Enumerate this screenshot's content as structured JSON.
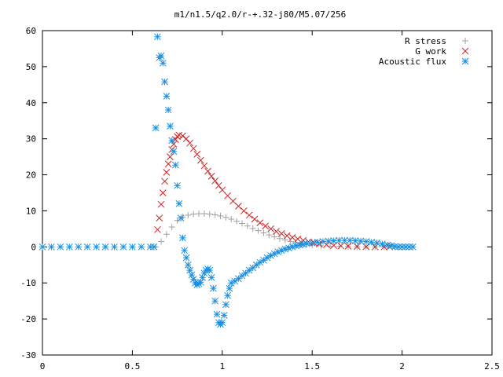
{
  "chart_data": {
    "type": "scatter",
    "title": "m1/n1.5/q2.0/r-+.32-j80/M5.07/256",
    "xlabel": "",
    "ylabel": "",
    "xlim": [
      0,
      2.5
    ],
    "ylim": [
      -30,
      60
    ],
    "xticks": [
      0,
      0.5,
      1,
      1.5,
      2,
      2.5
    ],
    "yticks": [
      -30,
      -20,
      -10,
      0,
      10,
      20,
      30,
      40,
      50,
      60
    ],
    "xtick_labels": [
      "0",
      "0.5",
      "1",
      "1.5",
      "2",
      "2.5"
    ],
    "ytick_labels": [
      "-30",
      "-20",
      "-10",
      "0",
      "10",
      "20",
      "30",
      "40",
      "50",
      "60"
    ],
    "grid": false,
    "legend_position": "top-right",
    "series": [
      {
        "name": "R stress",
        "marker": "plus",
        "color": "#a0a0a0",
        "points": [
          [
            0.63,
            0
          ],
          [
            0.66,
            1.5
          ],
          [
            0.69,
            3.5
          ],
          [
            0.72,
            5.5
          ],
          [
            0.75,
            7.3
          ],
          [
            0.78,
            8.3
          ],
          [
            0.81,
            8.8
          ],
          [
            0.84,
            9.1
          ],
          [
            0.87,
            9.2
          ],
          [
            0.9,
            9.2
          ],
          [
            0.93,
            9.1
          ],
          [
            0.96,
            8.9
          ],
          [
            0.99,
            8.6
          ],
          [
            1.02,
            8.2
          ],
          [
            1.05,
            7.7
          ],
          [
            1.08,
            7.1
          ],
          [
            1.11,
            6.5
          ],
          [
            1.14,
            5.8
          ],
          [
            1.17,
            5.1
          ],
          [
            1.2,
            4.5
          ],
          [
            1.23,
            3.9
          ],
          [
            1.26,
            3.3
          ],
          [
            1.29,
            2.8
          ],
          [
            1.32,
            2.3
          ],
          [
            1.35,
            1.9
          ],
          [
            1.38,
            1.5
          ],
          [
            1.41,
            1.2
          ],
          [
            1.44,
            0.9
          ],
          [
            1.47,
            0.7
          ],
          [
            1.5,
            0.5
          ],
          [
            1.55,
            0.3
          ],
          [
            1.6,
            0.2
          ],
          [
            1.65,
            0.15
          ],
          [
            1.7,
            0.1
          ],
          [
            1.75,
            0.05
          ],
          [
            1.8,
            0.02
          ],
          [
            1.85,
            0.01
          ],
          [
            1.9,
            0
          ]
        ]
      },
      {
        "name": "G work",
        "marker": "cross",
        "color": "#d02020",
        "points": [
          [
            0.64,
            4.8
          ],
          [
            0.65,
            8.0
          ],
          [
            0.66,
            11.8
          ],
          [
            0.67,
            15.0
          ],
          [
            0.68,
            18.2
          ],
          [
            0.69,
            20.7
          ],
          [
            0.7,
            23.0
          ],
          [
            0.71,
            25.0
          ],
          [
            0.72,
            27.0
          ],
          [
            0.73,
            28.5
          ],
          [
            0.74,
            29.8
          ],
          [
            0.75,
            30.6
          ],
          [
            0.76,
            31.0
          ],
          [
            0.78,
            30.8
          ],
          [
            0.8,
            30.0
          ],
          [
            0.82,
            28.8
          ],
          [
            0.84,
            27.3
          ],
          [
            0.86,
            25.7
          ],
          [
            0.88,
            24.0
          ],
          [
            0.9,
            22.5
          ],
          [
            0.92,
            21.0
          ],
          [
            0.94,
            19.6
          ],
          [
            0.96,
            18.3
          ],
          [
            0.98,
            17.0
          ],
          [
            1.0,
            15.8
          ],
          [
            1.03,
            14.2
          ],
          [
            1.06,
            12.7
          ],
          [
            1.09,
            11.3
          ],
          [
            1.12,
            10.0
          ],
          [
            1.15,
            8.8
          ],
          [
            1.18,
            7.7
          ],
          [
            1.21,
            6.7
          ],
          [
            1.24,
            5.8
          ],
          [
            1.27,
            5.0
          ],
          [
            1.3,
            4.3
          ],
          [
            1.33,
            3.7
          ],
          [
            1.36,
            3.1
          ],
          [
            1.39,
            2.6
          ],
          [
            1.42,
            2.2
          ],
          [
            1.45,
            1.8
          ],
          [
            1.48,
            1.4
          ],
          [
            1.51,
            1.1
          ],
          [
            1.54,
            0.8
          ],
          [
            1.58,
            0.6
          ],
          [
            1.62,
            0.4
          ],
          [
            1.66,
            0.3
          ],
          [
            1.7,
            0.2
          ],
          [
            1.75,
            0.1
          ],
          [
            1.8,
            0.05
          ],
          [
            1.85,
            0
          ],
          [
            1.9,
            0
          ],
          [
            1.93,
            0
          ]
        ]
      },
      {
        "name": "Acoustic flux",
        "marker": "star",
        "color": "#1a8fe0",
        "points": [
          [
            0.0,
            0
          ],
          [
            0.05,
            0
          ],
          [
            0.1,
            0
          ],
          [
            0.15,
            0
          ],
          [
            0.2,
            0
          ],
          [
            0.25,
            0
          ],
          [
            0.3,
            0
          ],
          [
            0.35,
            0
          ],
          [
            0.4,
            0
          ],
          [
            0.45,
            0
          ],
          [
            0.5,
            0
          ],
          [
            0.55,
            0
          ],
          [
            0.6,
            0
          ],
          [
            0.62,
            0
          ],
          [
            0.63,
            33.0
          ],
          [
            0.64,
            58.3
          ],
          [
            0.65,
            52.5
          ],
          [
            0.66,
            53.0
          ],
          [
            0.67,
            51.0
          ],
          [
            0.68,
            45.8
          ],
          [
            0.69,
            41.8
          ],
          [
            0.7,
            38.0
          ],
          [
            0.71,
            33.5
          ],
          [
            0.72,
            29.5
          ],
          [
            0.73,
            26.5
          ],
          [
            0.74,
            22.7
          ],
          [
            0.75,
            17.0
          ],
          [
            0.76,
            12.0
          ],
          [
            0.77,
            8.0
          ],
          [
            0.78,
            2.5
          ],
          [
            0.79,
            -1.0
          ],
          [
            0.8,
            -3.0
          ],
          [
            0.81,
            -5.0
          ],
          [
            0.82,
            -6.5
          ],
          [
            0.83,
            -7.8
          ],
          [
            0.84,
            -9.0
          ],
          [
            0.85,
            -10.0
          ],
          [
            0.86,
            -10.5
          ],
          [
            0.87,
            -10.2
          ],
          [
            0.88,
            -9.8
          ],
          [
            0.89,
            -8.5
          ],
          [
            0.9,
            -7.3
          ],
          [
            0.91,
            -6.5
          ],
          [
            0.92,
            -6.1
          ],
          [
            0.93,
            -6.5
          ],
          [
            0.94,
            -8.5
          ],
          [
            0.95,
            -11.5
          ],
          [
            0.96,
            -15.0
          ],
          [
            0.97,
            -18.7
          ],
          [
            0.98,
            -21.0
          ],
          [
            0.99,
            -21.5
          ],
          [
            1.0,
            -21.0
          ],
          [
            1.01,
            -19.0
          ],
          [
            1.02,
            -16.0
          ],
          [
            1.03,
            -13.5
          ],
          [
            1.04,
            -11.5
          ],
          [
            1.05,
            -10.0
          ],
          [
            1.07,
            -9.5
          ],
          [
            1.09,
            -8.8
          ],
          [
            1.11,
            -8.0
          ],
          [
            1.13,
            -7.3
          ],
          [
            1.15,
            -6.5
          ],
          [
            1.17,
            -5.8
          ],
          [
            1.19,
            -5.0
          ],
          [
            1.21,
            -4.3
          ],
          [
            1.23,
            -3.7
          ],
          [
            1.25,
            -3.0
          ],
          [
            1.27,
            -2.4
          ],
          [
            1.29,
            -1.9
          ],
          [
            1.31,
            -1.4
          ],
          [
            1.33,
            -1.0
          ],
          [
            1.35,
            -0.6
          ],
          [
            1.37,
            -0.3
          ],
          [
            1.39,
            0
          ],
          [
            1.41,
            0.3
          ],
          [
            1.43,
            0.5
          ],
          [
            1.45,
            0.7
          ],
          [
            1.47,
            0.9
          ],
          [
            1.5,
            1.1
          ],
          [
            1.53,
            1.3
          ],
          [
            1.56,
            1.5
          ],
          [
            1.59,
            1.6
          ],
          [
            1.62,
            1.7
          ],
          [
            1.65,
            1.8
          ],
          [
            1.68,
            1.8
          ],
          [
            1.71,
            1.8
          ],
          [
            1.74,
            1.7
          ],
          [
            1.77,
            1.6
          ],
          [
            1.8,
            1.5
          ],
          [
            1.83,
            1.3
          ],
          [
            1.86,
            1.1
          ],
          [
            1.89,
            0.8
          ],
          [
            1.92,
            0.5
          ],
          [
            1.94,
            0.3
          ],
          [
            1.96,
            0.1
          ],
          [
            1.98,
            0
          ],
          [
            2.0,
            0
          ],
          [
            2.02,
            0
          ],
          [
            2.04,
            0
          ],
          [
            2.06,
            0
          ]
        ]
      }
    ]
  }
}
